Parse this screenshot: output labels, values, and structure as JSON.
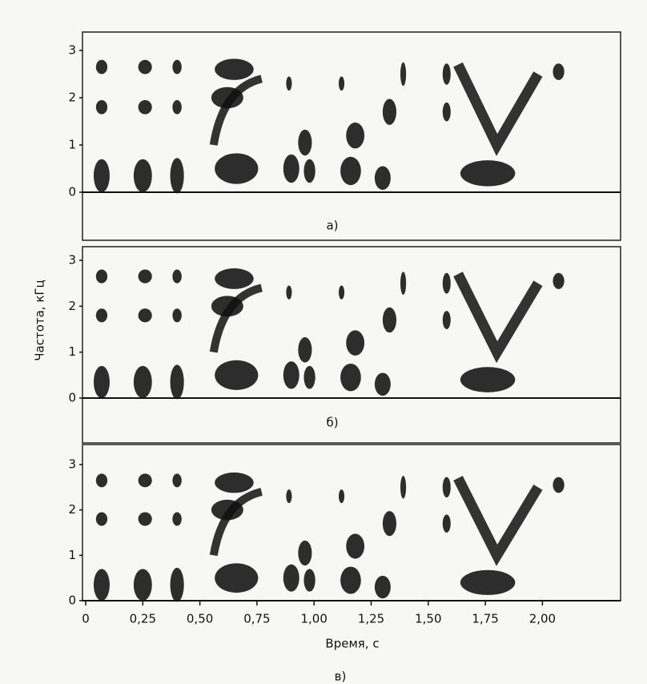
{
  "figure": {
    "y_label": "Частота, кГц",
    "x_label": "Время, с",
    "panels": [
      {
        "label": "а)",
        "yticks": [
          "0",
          "1",
          "2",
          "3"
        ]
      },
      {
        "label": "б)",
        "yticks": [
          "0",
          "1",
          "2",
          "3"
        ]
      },
      {
        "label": "в)",
        "yticks": [
          "0",
          "1",
          "2",
          "3"
        ]
      }
    ],
    "xticks": [
      "0",
      "0,25",
      "0,50",
      "0,75",
      "1,00",
      "1,25",
      "1,50",
      "1,75",
      "2,00"
    ]
  }
}
